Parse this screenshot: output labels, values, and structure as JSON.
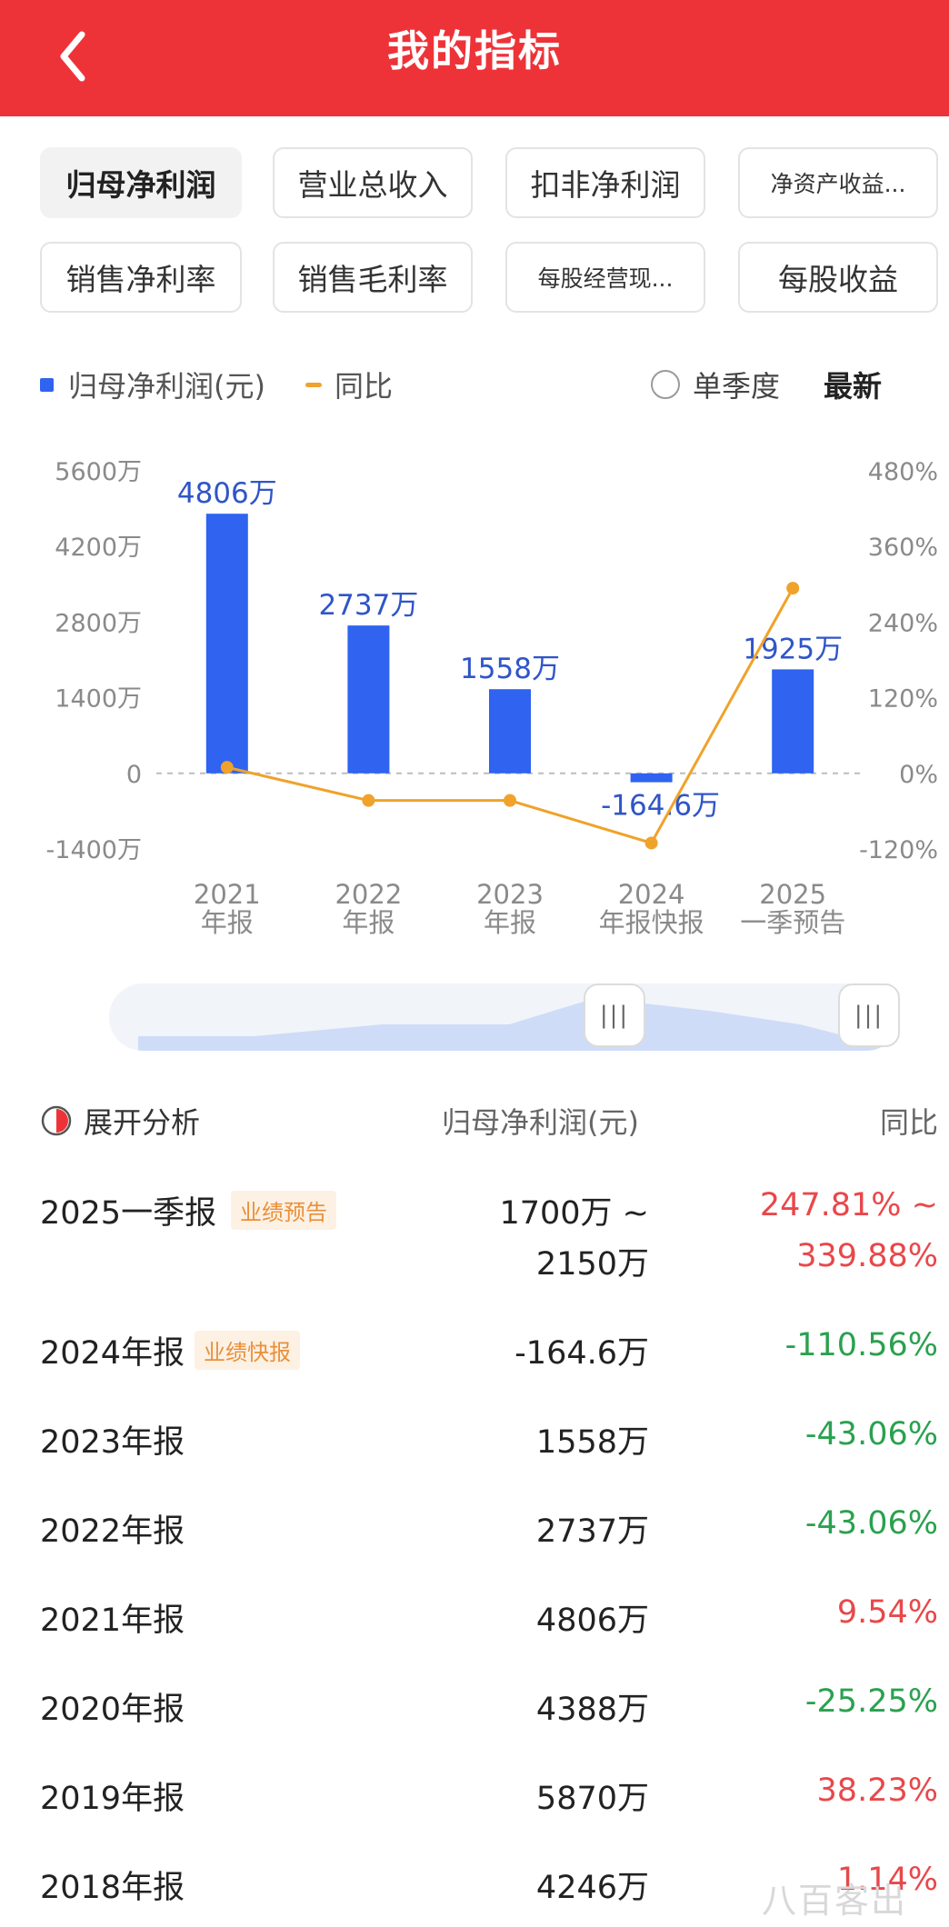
{
  "header": {
    "title": "我的指标"
  },
  "tabs": [
    {
      "label": "归母净利润",
      "active": true
    },
    {
      "label": "营业总收入"
    },
    {
      "label": "扣非净利润"
    },
    {
      "label": "净资产收益..."
    },
    {
      "label": "销售净利率"
    },
    {
      "label": "销售毛利率"
    },
    {
      "label": "每股经营现..."
    },
    {
      "label": "每股收益"
    }
  ],
  "legend": {
    "bar_label": "归母净利润(元)",
    "line_label": "同比",
    "single_quarter": "单季度",
    "latest": "最新"
  },
  "colors": {
    "header": "#ee3338",
    "bar": "#2f63f0",
    "line": "#f0a22a",
    "up": "#e8484b",
    "down": "#2aa14f",
    "tag_text": "#e8903b",
    "tag_bg": "#fdf1e4"
  },
  "chart_data": {
    "type": "bar",
    "categories": [
      "2021年报",
      "2022年报",
      "2023年报",
      "2024年报快报",
      "2025一季预告"
    ],
    "category_lines": [
      [
        "2021",
        "年报"
      ],
      [
        "2022",
        "年报"
      ],
      [
        "2023",
        "年报"
      ],
      [
        "2024",
        "年报快报"
      ],
      [
        "2025",
        "一季预告"
      ]
    ],
    "series": [
      {
        "name": "归母净利润(元)",
        "type": "bar",
        "axis": "left",
        "values": [
          4806,
          2737,
          1558,
          -164.6,
          1925
        ],
        "labels": [
          "4806万",
          "2737万",
          "1558万",
          "-164.6万",
          "1925万"
        ]
      },
      {
        "name": "同比",
        "type": "line",
        "axis": "right",
        "values": [
          9.54,
          -43.06,
          -43.06,
          -110.56,
          293.8
        ]
      }
    ],
    "y_left": {
      "ticks": [
        5600,
        4200,
        2800,
        1400,
        0,
        -1400
      ],
      "tick_labels": [
        "5600万",
        "4200万",
        "2800万",
        "1400万",
        "0",
        "-1400万"
      ],
      "range": [
        -1400,
        5600
      ]
    },
    "y_right": {
      "ticks": [
        480,
        360,
        240,
        120,
        0,
        -120
      ],
      "tick_labels": [
        "480%",
        "360%",
        "240%",
        "120%",
        "0%",
        "-120%"
      ],
      "range": [
        -120,
        480
      ]
    },
    "zero_line": "dashed"
  },
  "table": {
    "header": {
      "expand_label": "展开分析",
      "value_col": "归母净利润(元)",
      "yoy_col": "同比"
    },
    "rows": [
      {
        "period": "2025一季报",
        "tag": "业绩预告",
        "value": "1700万 ~",
        "value2": "2150万",
        "yoy": "247.81% ~",
        "yoy2": "339.88%",
        "trend": "up"
      },
      {
        "period": "2024年报",
        "tag": "业绩快报",
        "value": "-164.6万",
        "yoy": "-110.56%",
        "trend": "down"
      },
      {
        "period": "2023年报",
        "value": "1558万",
        "yoy": "-43.06%",
        "trend": "down"
      },
      {
        "period": "2022年报",
        "value": "2737万",
        "yoy": "-43.06%",
        "trend": "down"
      },
      {
        "period": "2021年报",
        "value": "4806万",
        "yoy": "9.54%",
        "trend": "up"
      },
      {
        "period": "2020年报",
        "value": "4388万",
        "yoy": "-25.25%",
        "trend": "down"
      },
      {
        "period": "2019年报",
        "value": "5870万",
        "yoy": "38.23%",
        "trend": "up"
      },
      {
        "period": "2018年报",
        "value": "4246万",
        "yoy": "1.14%",
        "trend": "up"
      }
    ]
  },
  "watermark": "八百客出"
}
